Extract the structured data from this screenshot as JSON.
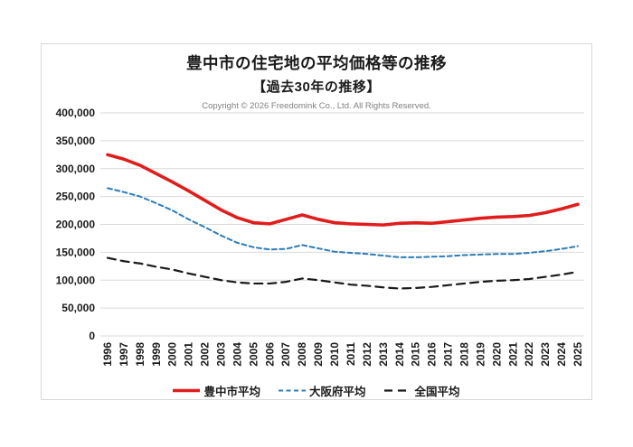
{
  "chart": {
    "title": "豊中市の住宅地の平均価格等の推移",
    "subtitle": "【過去30年の推移】",
    "copyright": "Copyright © 2026 Freedomink Co., Ltd. All Rights Reserved.",
    "border_color": "#d9d9d9",
    "background": "#ffffff"
  },
  "chart_data": {
    "type": "line",
    "title": "豊中市の住宅地の平均価格等の推移【過去30年の推移】",
    "xlabel": "",
    "ylabel": "",
    "x": [
      "1996",
      "1997",
      "1998",
      "1999",
      "2000",
      "2001",
      "2002",
      "2003",
      "2004",
      "2005",
      "2006",
      "2007",
      "2008",
      "2009",
      "2010",
      "2011",
      "2012",
      "2013",
      "2014",
      "2015",
      "2016",
      "2017",
      "2018",
      "2019",
      "2020",
      "2021",
      "2022",
      "2023",
      "2024",
      "2025"
    ],
    "series": [
      {
        "key": "toyonaka-city-average",
        "name": "豊中市平均",
        "color": "#e11c1c",
        "line_style": "solid",
        "line_width": 3.6,
        "dash": null,
        "values": [
          325000,
          317000,
          306000,
          291000,
          276000,
          260000,
          243000,
          226000,
          212000,
          203000,
          201000,
          209000,
          217000,
          209000,
          203000,
          201000,
          200000,
          199000,
          202000,
          203000,
          202000,
          205000,
          208000,
          211000,
          213000,
          214000,
          216000,
          221000,
          228000,
          236000
        ]
      },
      {
        "key": "osaka-prefecture-average",
        "name": "大阪府平均",
        "color": "#2e7cba",
        "line_style": "dashed",
        "line_width": 2,
        "dash": "5 3.5",
        "values": [
          265000,
          258000,
          250000,
          238000,
          225000,
          209000,
          195000,
          180000,
          167000,
          159000,
          155000,
          156000,
          163000,
          157000,
          151000,
          149000,
          147000,
          144000,
          141000,
          141000,
          142000,
          143000,
          145000,
          146000,
          147000,
          147000,
          149000,
          152000,
          156000,
          161000
        ]
      },
      {
        "key": "national-average",
        "name": "全国平均",
        "color": "#1a1a1a",
        "line_style": "dashed",
        "line_width": 2.2,
        "dash": "9 6",
        "values": [
          140000,
          134000,
          130000,
          124000,
          119000,
          112000,
          106000,
          100000,
          96000,
          94000,
          94000,
          97000,
          103000,
          100000,
          96000,
          92000,
          90000,
          87000,
          85000,
          86000,
          88000,
          91000,
          94000,
          97000,
          99000,
          100000,
          102000,
          106000,
          110000,
          115000
        ]
      }
    ],
    "ylim": [
      0,
      400000
    ],
    "ytick_step": 50000,
    "ytick_labels": [
      "0",
      "50,000",
      "100,000",
      "150,000",
      "200,000",
      "250,000",
      "300,000",
      "350,000",
      "400,000"
    ],
    "grid": true,
    "gridline_color": "#d9d9d9",
    "legend_position": "bottom"
  }
}
